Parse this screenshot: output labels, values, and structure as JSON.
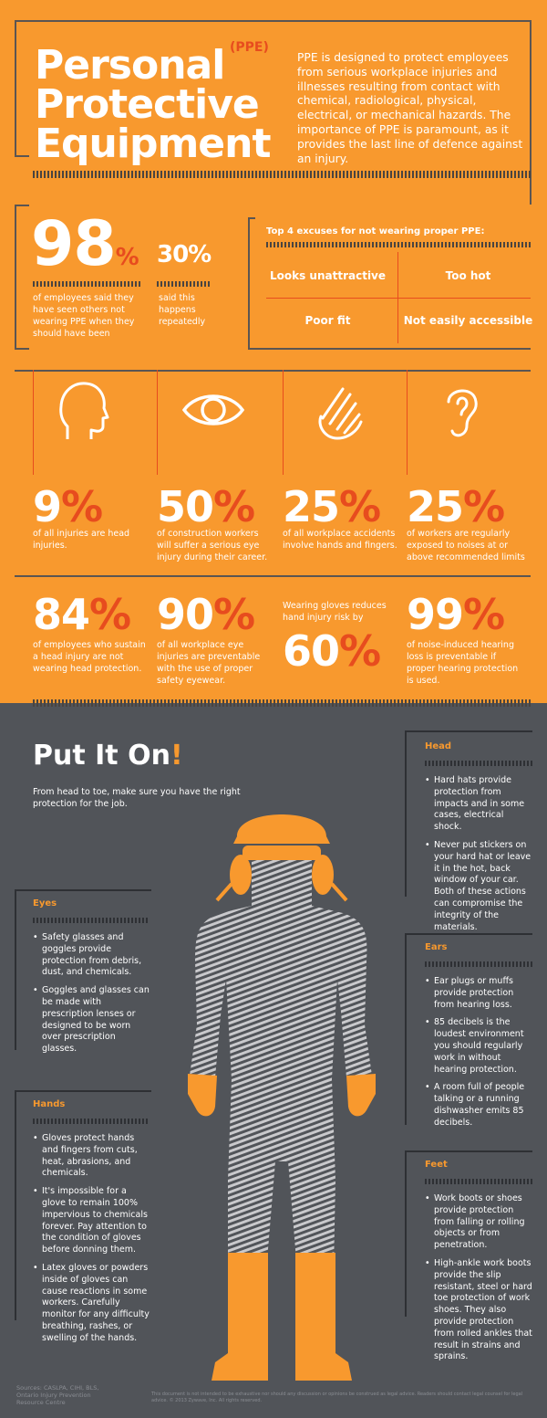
{
  "title": {
    "line1": "Personal",
    "line2": "Protective",
    "line3": "Equipment",
    "ppe": "(PPE)"
  },
  "intro": "PPE is designed to protect employees from serious workplace injuries and illnesses resulting from contact with chemical, radiological, physical, electrical, or mechanical hazards. The importance of PPE is paramount, as it provides the last line of defence against an injury.",
  "stat98": {
    "value": "98",
    "unit": "%",
    "text": "of employees said they have seen others not wearing PPE when they should have been"
  },
  "stat30": {
    "value": "30%",
    "text": "said this happens repeatedly"
  },
  "excuses": {
    "heading": "Top 4 excuses for not wearing proper PPE:",
    "items": [
      "Looks unattractive",
      "Too hot",
      "Poor fit",
      "Not easily accessible"
    ]
  },
  "icons": [
    "head-icon",
    "eye-icon",
    "hand-icon",
    "ear-icon"
  ],
  "row1": [
    {
      "value": "9",
      "unit": "%",
      "text": "of all injuries are head injuries."
    },
    {
      "value": "50",
      "unit": "%",
      "text": "of construction workers will suffer a serious eye injury during their career."
    },
    {
      "value": "25",
      "unit": "%",
      "text": "of all workplace accidents involve hands and fingers."
    },
    {
      "value": "25",
      "unit": "%",
      "text": "of workers are regularly exposed to noises at or above recommended limits"
    }
  ],
  "row2": [
    {
      "value": "84",
      "unit": "%",
      "text": "of employees who sustain a head injury are not wearing head protection."
    },
    {
      "value": "90",
      "unit": "%",
      "text": "of all workplace eye injuries are preventable with the use of proper safety eyewear."
    },
    {
      "value": "60",
      "unit": "%",
      "text": "Wearing gloves reduces hand injury risk by"
    },
    {
      "value": "99",
      "unit": "%",
      "text": "of noise-induced hearing loss is preventable if proper hearing protection is used."
    }
  ],
  "putiton": {
    "title": "Put It On",
    "excl": "!",
    "sub": "From head to toe, make sure you have the right protection for the job."
  },
  "head": {
    "heading": "Head",
    "items": [
      "Hard hats provide protection from impacts and in some cases, electrical shock.",
      "Never put stickers on your hard hat or leave it in the hot, back window of your car. Both of these actions can compromise the integrity of the materials."
    ]
  },
  "eyes": {
    "heading": "Eyes",
    "items": [
      "Safety glasses and goggles provide protection from debris, dust, and chemicals.",
      "Goggles and glasses can be made with prescription lenses or designed to be worn over prescription glasses."
    ]
  },
  "ears": {
    "heading": "Ears",
    "items": [
      "Ear plugs or muffs provide protection from hearing loss.",
      "85 decibels is the loudest environment you should regularly work in without hearing protection.",
      "A room full of people talking or a running dishwasher emits 85 decibels."
    ]
  },
  "hands": {
    "heading": "Hands",
    "items": [
      "Gloves protect hands and fingers from cuts, heat, abrasions, and chemicals.",
      "It's impossible for a glove to remain 100% impervious to chemicals forever. Pay attention to the condition of gloves before donning them.",
      "Latex gloves or powders inside of gloves can cause reactions in some workers. Carefully monitor for any difficulty breathing, rashes, or swelling of the hands."
    ]
  },
  "feet": {
    "heading": "Feet",
    "items": [
      "Work boots or shoes provide protection from falling or rolling objects or from penetration.",
      "High-ankle work boots provide the slip resistant, steel or hard toe protection of work shoes. They also provide protection from rolled ankles that result in strains and sprains."
    ]
  },
  "sources": "Sources: CASLPA, CIHI, BLS, Ontario Injury Prevention Resource Centre",
  "disclaimer": "This document is not intended to be exhaustive nor should any discussion or opinions be construed as legal advice. Readers should contact legal counsel for legal advice. © 2013 Zywave, Inc. All rights reserved.",
  "colors": {
    "orange": "#F8992E",
    "red": "#E74C1E",
    "slate": "#515459",
    "line": "#5B5552"
  }
}
